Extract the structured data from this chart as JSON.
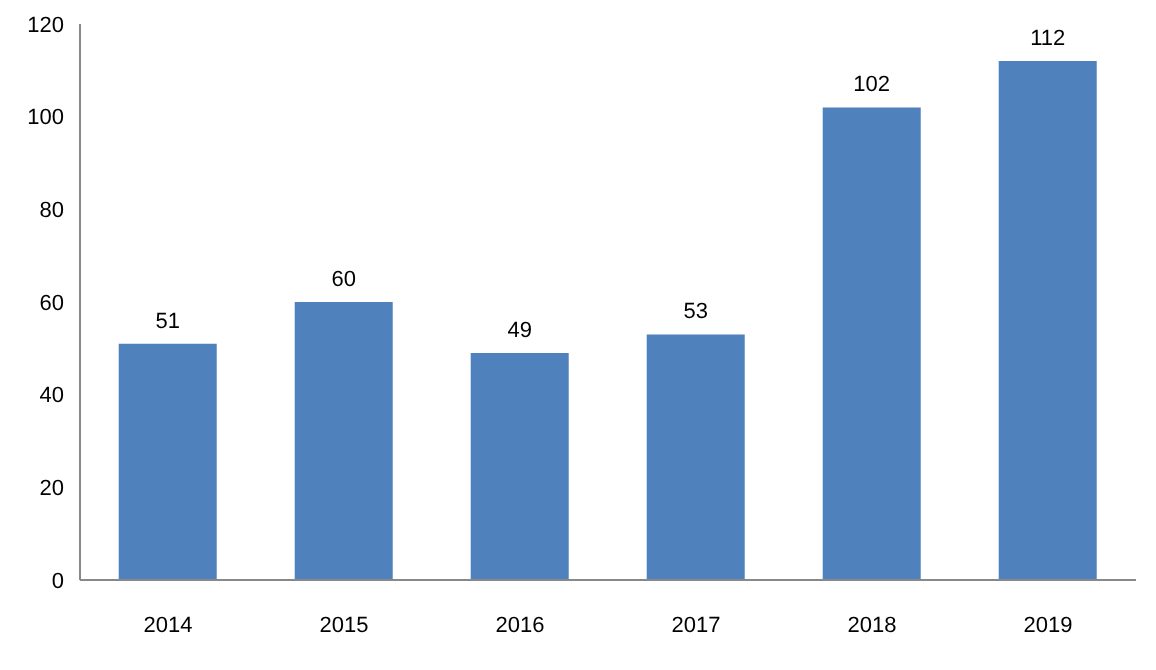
{
  "chart_data": {
    "type": "bar",
    "categories": [
      "2014",
      "2015",
      "2016",
      "2017",
      "2018",
      "2019"
    ],
    "values": [
      51,
      60,
      49,
      53,
      102,
      112
    ],
    "color": "#4f81bd",
    "ylim": [
      0,
      120
    ],
    "yticks": [
      0,
      20,
      40,
      60,
      80,
      100,
      120
    ],
    "data_labels": true,
    "grid": false
  }
}
